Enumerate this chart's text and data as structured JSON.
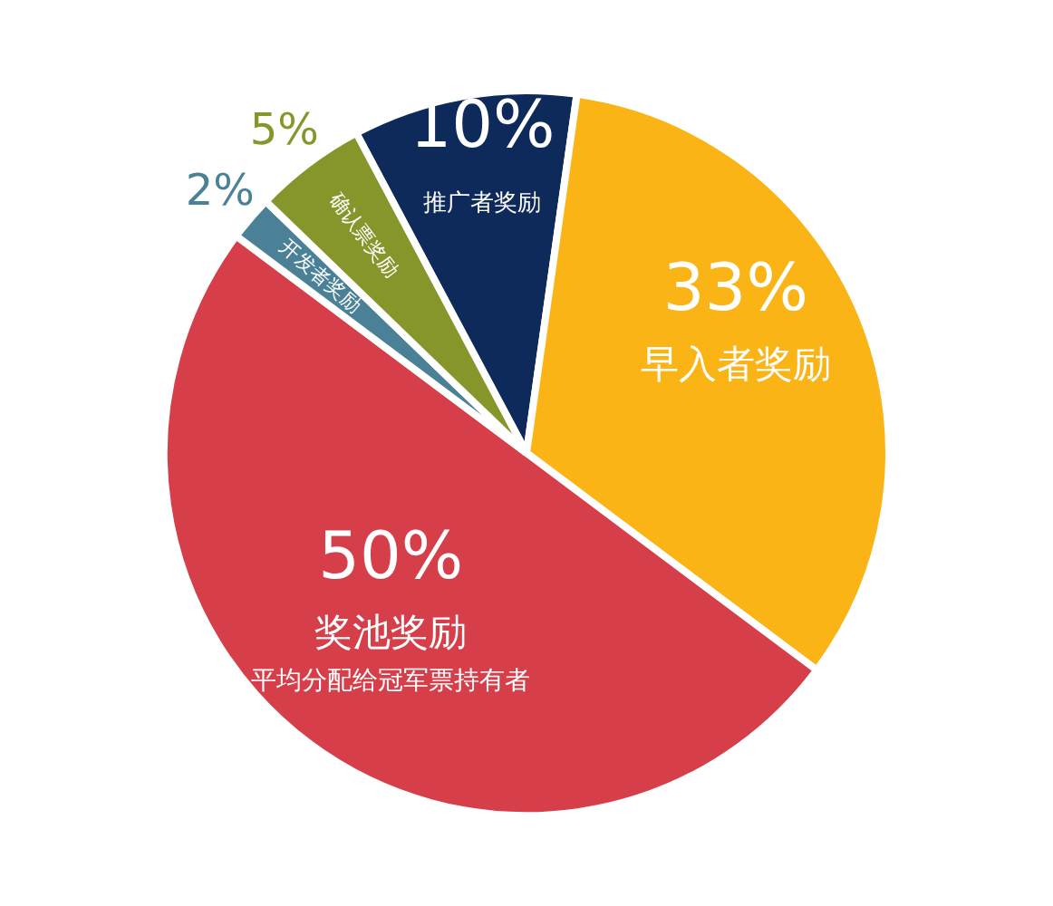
{
  "chart_data": {
    "type": "pie",
    "categories": [
      "推广者奖励",
      "早入者奖励",
      "奖池奖励",
      "开发者奖励",
      "确认票奖励"
    ],
    "values": [
      10,
      33,
      50,
      2,
      5
    ],
    "value_labels": [
      "10%",
      "33%",
      "50%",
      "2%",
      "5%"
    ],
    "colors": [
      "#0e2a5a",
      "#fbb415",
      "#d63f4a",
      "#4a8196",
      "#87962a"
    ],
    "annotations": [
      {
        "text": "平均分配给冠军票持有者",
        "x": "奖池奖励"
      }
    ]
  }
}
